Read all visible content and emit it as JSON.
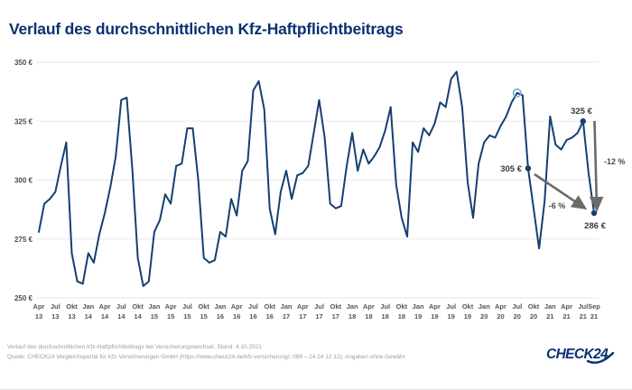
{
  "header": {
    "title": "Verlauf des durchschnittlichen Kfz-Haftpflichtbeitrags"
  },
  "colors": {
    "brand_navy": "#0a3172",
    "line": "#153f72",
    "grid": "#e7e7e7",
    "arrow_gray": "#6b6b6b",
    "highlight_ring": "#82a7d6"
  },
  "chart_data": {
    "type": "line",
    "title": "Verlauf des durchschnittlichen Kfz-Haftpflichtbeitrags",
    "unit": "€",
    "start_month": "Apr 2013",
    "end_month": "Sep 2021",
    "ylim": [
      250,
      350
    ],
    "ytick_values": [
      350,
      325,
      300,
      275,
      250
    ],
    "grid": true,
    "x_tick_labels": [
      "Apr 13",
      "Jul 13",
      "Okt 13",
      "Jan 14",
      "Apr 14",
      "Jul 14",
      "Okt 14",
      "Jan 15",
      "Apr 15",
      "Jul 15",
      "Okt 15",
      "Jan 16",
      "Apr 16",
      "Jul 16",
      "Okt 16",
      "Jan 17",
      "Apr 17",
      "Jul 17",
      "Okt 17",
      "Jan 18",
      "Apr 18",
      "Jul 18",
      "Okt 18",
      "Jan 19",
      "Apr 19",
      "Jul 19",
      "Okt 19",
      "Jan 20",
      "Apr 20",
      "Jul 20",
      "Okt 20",
      "Jan 21",
      "Apr 21",
      "Jul 21",
      "Sep 21"
    ],
    "values_monthly_eur": [
      278,
      290,
      292,
      295,
      306,
      316,
      269,
      257,
      256,
      269,
      265,
      277,
      286,
      297,
      310,
      334,
      335,
      305,
      267,
      255,
      257,
      278,
      283,
      294,
      290,
      306,
      307,
      322,
      322,
      300,
      267,
      265,
      266,
      278,
      276,
      292,
      285,
      304,
      308,
      338,
      342,
      330,
      288,
      277,
      295,
      304,
      292,
      302,
      303,
      306,
      320,
      334,
      318,
      290,
      288,
      289,
      306,
      320,
      304,
      313,
      307,
      310,
      314,
      321,
      331,
      298,
      284,
      276,
      316,
      312,
      322,
      319,
      324,
      333,
      331,
      343,
      346,
      331,
      299,
      284,
      307,
      316,
      319,
      318,
      323,
      327,
      333,
      337,
      336,
      305,
      288,
      271,
      291,
      327,
      315,
      313,
      317,
      318,
      320,
      325,
      303,
      286
    ],
    "annotations": [
      {
        "index": 89,
        "month": "Sep 20",
        "value": 305,
        "label": "305 €"
      },
      {
        "index": 99,
        "month": "Jul 21",
        "value": 325,
        "label": "325 €"
      },
      {
        "index": 101,
        "month": "Sep 21",
        "value": 286,
        "label": "286 €"
      }
    ],
    "highlight_circle": {
      "index": 87,
      "month": "Jul 20",
      "value": 337
    },
    "change_arrows": [
      {
        "label": "-6 %",
        "from": "305 €",
        "to": "286 €"
      },
      {
        "label": "-12 %",
        "from": "325 €",
        "to": "286 €"
      }
    ]
  },
  "footer": {
    "line1": "Verlauf des durchschnittlichen Kfz-Haftpflichtbeitrags bei Versicherungswechsel,  Stand: 4.10.2021",
    "line2": "Quelle: CHECK24 Vergleichsportal für Kfz-Versicherungen GmbH (https://www.check24.de/kfz-versicherung/; 089 – 24 24 12 12); Angaben ohne Gewähr"
  },
  "logo": {
    "text": "CHECK24"
  }
}
